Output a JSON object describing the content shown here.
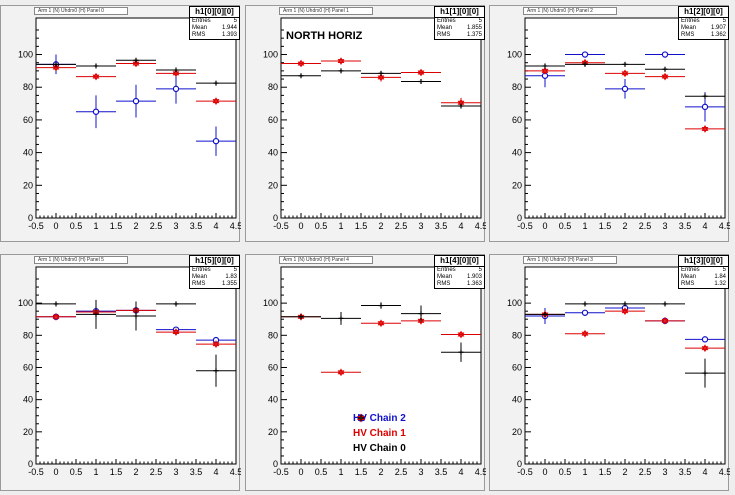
{
  "colors": {
    "chain2": "#1010cc",
    "chain1": "#dd0000",
    "chain0": "#000000"
  },
  "chart_data": [
    {
      "type": "scatter",
      "histogram": "h1[0][0][0]",
      "title": "",
      "pad_title": "Arm 1 (N) Uhdrx0 (H) Panel 0",
      "stats": {
        "entries": "5",
        "mean": "1.944",
        "rms": "1.393"
      },
      "xlim": [
        -0.5,
        4.5
      ],
      "ylim": [
        0,
        115
      ],
      "xlabel": "",
      "ylabel": "",
      "x_ticks": [
        "-0.5",
        "0",
        "0.5",
        "1",
        "1.5",
        "2",
        "2.5",
        "3",
        "3.5",
        "4",
        "4.5"
      ],
      "y_ticks": [
        "0",
        "20",
        "40",
        "60",
        "80",
        "100"
      ],
      "series": [
        {
          "name": "HV Chain 2",
          "marker": "circle",
          "x": [
            0,
            1,
            2,
            3,
            4
          ],
          "y": [
            94,
            65,
            71.5,
            79,
            47
          ],
          "yerr": [
            6,
            10,
            10,
            9,
            9
          ]
        },
        {
          "name": "HV Chain 1",
          "marker": "star",
          "x": [
            0,
            1,
            2,
            3,
            4
          ],
          "y": [
            92,
            86.5,
            94.5,
            88.5,
            71.5
          ],
          "yerr": [
            2,
            1.5,
            2,
            2,
            2
          ]
        },
        {
          "name": "HV Chain 0",
          "marker": "cross",
          "x": [
            0,
            1,
            2,
            3,
            4
          ],
          "y": [
            94,
            93,
            96.5,
            90.5,
            82.5
          ],
          "yerr": [
            0.5,
            0.5,
            0.5,
            0.5,
            0.5
          ]
        }
      ]
    },
    {
      "type": "scatter",
      "histogram": "h1[1][0][0]",
      "title": "NORTH HORIZ",
      "pad_title": "Arm 1 (N) Uhdrx0 (H) Panel 1",
      "stats": {
        "entries": "5",
        "mean": "1.855",
        "rms": "1.375"
      },
      "xlim": [
        -0.5,
        4.5
      ],
      "ylim": [
        0,
        115
      ],
      "xlabel": "",
      "ylabel": "",
      "x_ticks": [
        "-0.5",
        "0",
        "0.5",
        "1",
        "1.5",
        "2",
        "2.5",
        "3",
        "3.5",
        "4",
        "4.5"
      ],
      "y_ticks": [
        "0",
        "20",
        "40",
        "60",
        "80",
        "100"
      ],
      "series": [
        {
          "name": "HV Chain 2",
          "marker": "circle",
          "x": [],
          "y": [],
          "yerr": []
        },
        {
          "name": "HV Chain 1",
          "marker": "star",
          "x": [
            0,
            1,
            2,
            3,
            4
          ],
          "y": [
            94.5,
            96,
            86,
            89,
            70.5
          ],
          "yerr": [
            1.5,
            1.5,
            2.5,
            2,
            3
          ]
        },
        {
          "name": "HV Chain 0",
          "marker": "cross",
          "x": [
            0,
            1,
            2,
            3,
            4
          ],
          "y": [
            87,
            90,
            88.5,
            83.5,
            68.5
          ],
          "yerr": [
            0.5,
            0.5,
            0.5,
            0.5,
            0.5
          ]
        }
      ]
    },
    {
      "type": "scatter",
      "histogram": "h1[2][0][0]",
      "title": "",
      "pad_title": "Arm 1 (N) Uhdrx0 (H) Panel 2",
      "stats": {
        "entries": "5",
        "mean": "1.907",
        "rms": "1.362"
      },
      "xlim": [
        -0.5,
        4.5
      ],
      "ylim": [
        0,
        115
      ],
      "xlabel": "",
      "ylabel": "",
      "x_ticks": [
        "-0.5",
        "0",
        "0.5",
        "1",
        "1.5",
        "2",
        "2.5",
        "3",
        "3.5",
        "4",
        "4.5"
      ],
      "y_ticks": [
        "0",
        "20",
        "40",
        "60",
        "80",
        "100"
      ],
      "series": [
        {
          "name": "HV Chain 2",
          "marker": "circle",
          "x": [
            0,
            1,
            2,
            3,
            4
          ],
          "y": [
            87,
            100,
            79,
            100,
            68
          ],
          "yerr": [
            7,
            1,
            6,
            1,
            9
          ]
        },
        {
          "name": "HV Chain 1",
          "marker": "star",
          "x": [
            0,
            1,
            2,
            3,
            4
          ],
          "y": [
            90,
            95,
            88.5,
            86.5,
            54.5
          ],
          "yerr": [
            2,
            1.5,
            2,
            1.5,
            2
          ]
        },
        {
          "name": "HV Chain 0",
          "marker": "cross",
          "x": [
            0,
            1,
            2,
            3,
            4
          ],
          "y": [
            93,
            94,
            94,
            91,
            74.5
          ],
          "yerr": [
            0.5,
            0.5,
            0.5,
            0.5,
            0.5
          ]
        }
      ]
    },
    {
      "type": "scatter",
      "histogram": "h1[5][0][0]",
      "title": "",
      "pad_title": "Arm 1 (N) Uhdrx0 (H) Panel 5",
      "stats": {
        "entries": "5",
        "mean": "1.83",
        "rms": "1.355"
      },
      "xlim": [
        -0.5,
        4.5
      ],
      "ylim": [
        0,
        115
      ],
      "xlabel": "",
      "ylabel": "",
      "x_ticks": [
        "-0.5",
        "0",
        "0.5",
        "1",
        "1.5",
        "2",
        "2.5",
        "3",
        "3.5",
        "4",
        "4.5"
      ],
      "y_ticks": [
        "0",
        "20",
        "40",
        "60",
        "80",
        "100"
      ],
      "series": [
        {
          "name": "HV Chain 2",
          "marker": "circle",
          "x": [
            0,
            1,
            2,
            3,
            4
          ],
          "y": [
            91.5,
            95,
            95.5,
            83.5,
            77
          ],
          "yerr": [
            1.5,
            3,
            3,
            1.5,
            1.5
          ]
        },
        {
          "name": "HV Chain 1",
          "marker": "star",
          "x": [
            0,
            1,
            2,
            3,
            4
          ],
          "y": [
            91.5,
            94.5,
            95.5,
            82,
            74.5
          ],
          "yerr": [
            1,
            1,
            1,
            1.5,
            2
          ]
        },
        {
          "name": "HV Chain 0",
          "marker": "cross",
          "x": [
            0,
            1,
            2,
            3,
            4
          ],
          "y": [
            99.5,
            93,
            92,
            99.5,
            58
          ],
          "yerr": [
            0.5,
            9,
            9,
            0.5,
            10
          ]
        }
      ]
    },
    {
      "type": "scatter",
      "histogram": "h1[4][0][0]",
      "title": "",
      "pad_title": "Arm 1 (N) Uhdrx0 (H) Panel 4",
      "stats": {
        "entries": "5",
        "mean": "1.903",
        "rms": "1.363"
      },
      "xlim": [
        -0.5,
        4.5
      ],
      "ylim": [
        0,
        115
      ],
      "xlabel": "",
      "ylabel": "",
      "x_ticks": [
        "-0.5",
        "0",
        "0.5",
        "1",
        "1.5",
        "2",
        "2.5",
        "3",
        "3.5",
        "4",
        "4.5"
      ],
      "y_ticks": [
        "0",
        "20",
        "40",
        "60",
        "80",
        "100"
      ],
      "series": [
        {
          "name": "HV Chain 2",
          "marker": "circle",
          "x": [],
          "y": [],
          "yerr": []
        },
        {
          "name": "HV Chain 1",
          "marker": "star",
          "x": [
            0,
            1,
            2,
            3,
            4
          ],
          "y": [
            91.5,
            57,
            87.5,
            89,
            80.5
          ],
          "yerr": [
            2,
            1.5,
            1,
            2,
            1
          ]
        },
        {
          "name": "HV Chain 0",
          "marker": "cross",
          "x": [
            0,
            1,
            2,
            3,
            4
          ],
          "y": [
            91.5,
            90.5,
            98.5,
            93.5,
            69.5
          ],
          "yerr": [
            0.5,
            4,
            2,
            5,
            6
          ]
        }
      ]
    },
    {
      "type": "scatter",
      "histogram": "h1[3][0][0]",
      "title": "",
      "pad_title": "Arm 1 (N) Uhdrx0 (H) Panel 3",
      "stats": {
        "entries": "5",
        "mean": "1.84",
        "rms": "1.32"
      },
      "xlim": [
        -0.5,
        4.5
      ],
      "ylim": [
        0,
        115
      ],
      "xlabel": "",
      "ylabel": "",
      "x_ticks": [
        "-0.5",
        "0",
        "0.5",
        "1",
        "1.5",
        "2",
        "2.5",
        "3",
        "3.5",
        "4",
        "4.5"
      ],
      "y_ticks": [
        "0",
        "20",
        "40",
        "60",
        "80",
        "100"
      ],
      "series": [
        {
          "name": "HV Chain 2",
          "marker": "circle",
          "x": [
            0,
            1,
            2,
            3,
            4
          ],
          "y": [
            92,
            94,
            97,
            89,
            77.5
          ],
          "yerr": [
            5,
            1.5,
            3,
            2,
            1
          ]
        },
        {
          "name": "HV Chain 1",
          "marker": "star",
          "x": [
            0,
            1,
            2,
            3,
            4
          ],
          "y": [
            93,
            81,
            95,
            89,
            72
          ],
          "yerr": [
            1.5,
            2,
            1.5,
            1.5,
            2
          ]
        },
        {
          "name": "HV Chain 0",
          "marker": "cross",
          "x": [
            0,
            1,
            2,
            3,
            4
          ],
          "y": [
            93,
            99.5,
            99.5,
            99.5,
            56.5
          ],
          "yerr": [
            0.5,
            0.5,
            0.5,
            0.5,
            9
          ]
        }
      ]
    }
  ],
  "legend": [
    {
      "label": "HV Chain 2",
      "marker": "circle"
    },
    {
      "label": "HV Chain 1",
      "marker": "star"
    },
    {
      "label": "HV Chain 0",
      "marker": "cross"
    }
  ]
}
